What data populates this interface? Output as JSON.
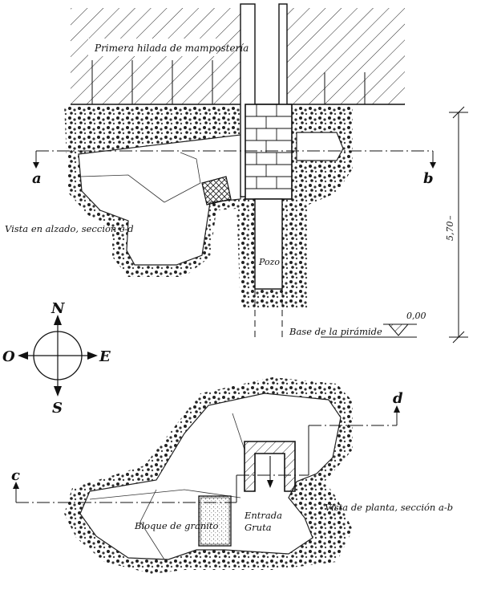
{
  "labels": {
    "first_course": "Primera hilada de mampostería",
    "elevation_view": "Vista en alzado, sección c-d",
    "shaft": "Pozo",
    "pyramid_base": "Base de la pirámide",
    "level_zero": "0,00",
    "height": "5,70",
    "plan_view": "Vista de planta, sección a-b",
    "granite_block": "Bloque de granito",
    "entrance_line1": "Entrada",
    "entrance_line2": "Gruta",
    "section_a": "a",
    "section_b": "b",
    "section_c": "c",
    "section_d": "d"
  },
  "compass": {
    "north": "N",
    "south": "S",
    "east": "E",
    "west": "O"
  }
}
